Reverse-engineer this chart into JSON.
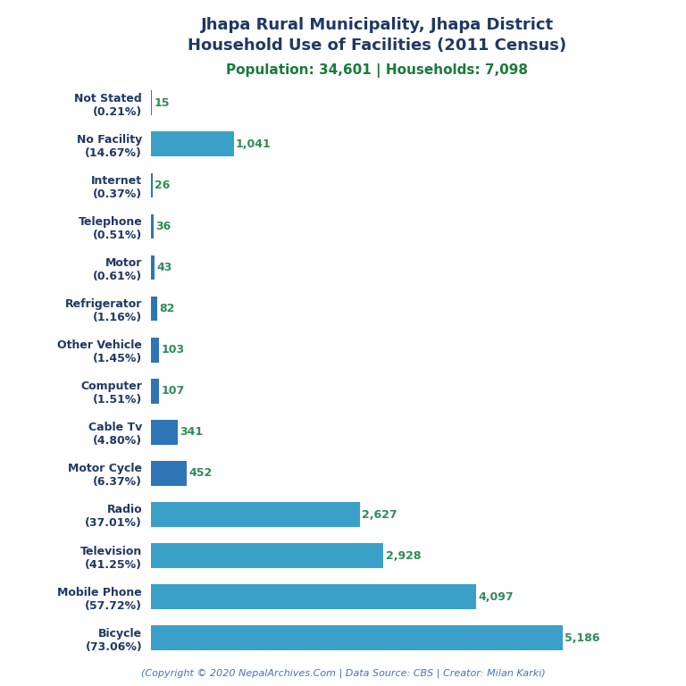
{
  "title_line1": "Jhapa Rural Municipality, Jhapa District",
  "title_line2": "Household Use of Facilities (2011 Census)",
  "subtitle": "Population: 34,601 | Households: 7,098",
  "footer": "(Copyright © 2020 NepalArchives.Com | Data Source: CBS | Creator: Milan Karki)",
  "categories": [
    "Not Stated\n(0.21%)",
    "No Facility\n(14.67%)",
    "Internet\n(0.37%)",
    "Telephone\n(0.51%)",
    "Motor\n(0.61%)",
    "Refrigerator\n(1.16%)",
    "Other Vehicle\n(1.45%)",
    "Computer\n(1.51%)",
    "Cable Tv\n(4.80%)",
    "Motor Cycle\n(6.37%)",
    "Radio\n(37.01%)",
    "Television\n(41.25%)",
    "Mobile Phone\n(57.72%)",
    "Bicycle\n(73.06%)"
  ],
  "values": [
    15,
    1041,
    26,
    36,
    43,
    82,
    103,
    107,
    341,
    452,
    2627,
    2928,
    4097,
    5186
  ],
  "bar_color_small": "#2e75b6",
  "bar_color_large": "#3aa0c8",
  "title_color": "#1f3864",
  "subtitle_color": "#1a7a3c",
  "value_color": "#2e8b57",
  "footer_color": "#4472c4",
  "background_color": "#ffffff",
  "xlim": [
    0,
    5700
  ]
}
